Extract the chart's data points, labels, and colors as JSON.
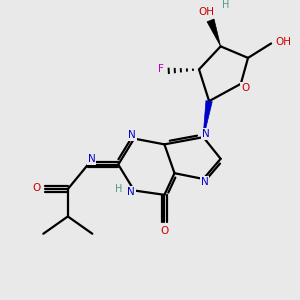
{
  "background_color": "#e9e9e9",
  "fig_size": [
    3.0,
    3.0
  ],
  "dpi": 100,
  "atom_colors": {
    "N": "#0000cc",
    "O": "#cc0000",
    "F": "#bb00bb",
    "H": "#4a9a8a",
    "C": "#000000",
    "default": "#000000"
  },
  "bond_lw": 1.6,
  "font_size": 7.5
}
